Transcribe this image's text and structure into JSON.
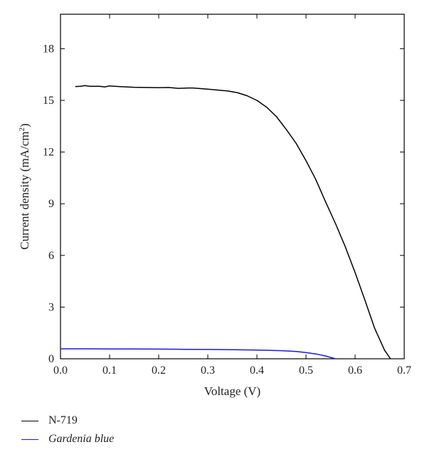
{
  "chart_data": {
    "type": "line",
    "title": "",
    "xlabel": "Voltage (V)",
    "ylabel_main": "Current density (mA/cm",
    "ylabel_sup": "2",
    "ylabel_close": ")",
    "xlim": [
      0.0,
      0.7
    ],
    "ylim": [
      0,
      20
    ],
    "xticks": [
      0.0,
      0.1,
      0.2,
      0.3,
      0.4,
      0.5,
      0.6,
      0.7
    ],
    "xtick_labels": [
      "0.0",
      "0.1",
      "0.2",
      "0.3",
      "0.4",
      "0.5",
      "0.6",
      "0.7"
    ],
    "yticks": [
      0,
      3,
      6,
      9,
      12,
      15,
      18
    ],
    "ytick_labels": [
      "0",
      "3",
      "6",
      "9",
      "12",
      "15",
      "18"
    ],
    "grid": false,
    "legend_position": "below",
    "series": [
      {
        "name": "N-719",
        "italic": false,
        "color": "#000000",
        "x": [
          0.03,
          0.04,
          0.05,
          0.06,
          0.08,
          0.09,
          0.1,
          0.12,
          0.15,
          0.2,
          0.22,
          0.24,
          0.26,
          0.27,
          0.3,
          0.32,
          0.34,
          0.36,
          0.38,
          0.4,
          0.42,
          0.44,
          0.46,
          0.48,
          0.5,
          0.52,
          0.54,
          0.56,
          0.58,
          0.6,
          0.62,
          0.64,
          0.66,
          0.672
        ],
        "y": [
          15.8,
          15.82,
          15.86,
          15.82,
          15.82,
          15.78,
          15.84,
          15.8,
          15.76,
          15.74,
          15.75,
          15.7,
          15.72,
          15.72,
          15.65,
          15.6,
          15.55,
          15.45,
          15.27,
          15.0,
          14.6,
          14.05,
          13.3,
          12.5,
          11.5,
          10.4,
          9.1,
          7.85,
          6.5,
          5.0,
          3.4,
          1.75,
          0.5,
          0.0
        ]
      },
      {
        "name": "Gardenia blue",
        "italic": true,
        "color": "#1a1adb",
        "x": [
          0.0,
          0.05,
          0.1,
          0.15,
          0.2,
          0.25,
          0.3,
          0.35,
          0.4,
          0.45,
          0.48,
          0.5,
          0.52,
          0.54,
          0.56
        ],
        "y": [
          0.58,
          0.58,
          0.57,
          0.57,
          0.56,
          0.55,
          0.54,
          0.53,
          0.51,
          0.47,
          0.42,
          0.36,
          0.28,
          0.16,
          0.0
        ]
      }
    ]
  }
}
